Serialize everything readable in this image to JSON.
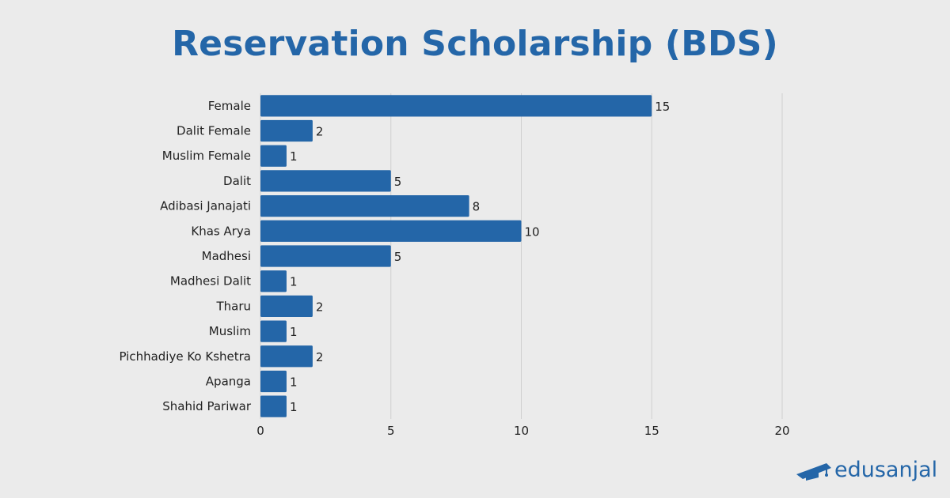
{
  "title": "Reservation Scholarship (BDS)",
  "brand": {
    "name": "edusanjal",
    "icon": "graduation-cap-icon",
    "color": "#2466a8"
  },
  "colors": {
    "bar": "#2466a8",
    "grid": "#cfcfcf",
    "background": "#ebebeb",
    "title": "#2466a8"
  },
  "chart_data": {
    "type": "bar",
    "orientation": "horizontal",
    "title": "Reservation Scholarship (BDS)",
    "categories": [
      "Female",
      "Dalit Female",
      "Muslim Female",
      "Dalit",
      "Adibasi Janajati",
      "Khas Arya",
      "Madhesi",
      "Madhesi Dalit",
      "Tharu",
      "Muslim",
      "Pichhadiye Ko Kshetra",
      "Apanga",
      "Shahid Pariwar"
    ],
    "values": [
      15,
      2,
      1,
      5,
      8,
      10,
      5,
      1,
      2,
      1,
      2,
      1,
      1
    ],
    "xlim": [
      0,
      20
    ],
    "xticks": [
      0,
      5,
      10,
      15,
      20
    ],
    "grid": true,
    "data_labels": true,
    "xlabel": "",
    "ylabel": ""
  }
}
